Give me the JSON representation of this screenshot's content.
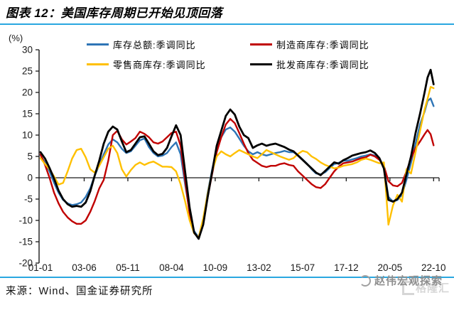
{
  "header": {
    "title": "图表 12：美国库存周期已开始见顶回落"
  },
  "colors": {
    "accent_rule": "#29A7E0",
    "axis": "#1a1a1a"
  },
  "chart_data": {
    "type": "line",
    "title": "美国库存周期已开始见顶回落",
    "y_unit_label": "(%)",
    "ylim": [
      -20,
      30
    ],
    "y_ticks": [
      30,
      25,
      20,
      15,
      10,
      5,
      0,
      -5,
      -10,
      -15,
      -20
    ],
    "x_tick_labels": [
      "01-01",
      "03-06",
      "05-11",
      "08-04",
      "10-09",
      "13-02",
      "15-07",
      "17-12",
      "20-05",
      "22-10"
    ],
    "x_tick_months": [
      0,
      29,
      58,
      87,
      116,
      145,
      174,
      203,
      232,
      261
    ],
    "grid": "off",
    "legend_position": "top",
    "x_months": [
      0,
      3,
      6,
      9,
      12,
      15,
      18,
      21,
      24,
      27,
      30,
      33,
      36,
      39,
      42,
      45,
      48,
      51,
      54,
      57,
      60,
      63,
      66,
      69,
      72,
      75,
      78,
      81,
      84,
      87,
      90,
      93,
      96,
      99,
      102,
      105,
      108,
      111,
      114,
      117,
      120,
      123,
      126,
      129,
      132,
      135,
      138,
      141,
      144,
      147,
      150,
      153,
      156,
      159,
      162,
      165,
      168,
      171,
      174,
      177,
      180,
      183,
      186,
      189,
      192,
      195,
      198,
      201,
      204,
      207,
      210,
      213,
      216,
      219,
      222,
      225,
      228,
      231,
      234,
      237,
      240,
      243,
      246,
      249,
      252,
      255,
      257,
      259,
      261
    ],
    "series": [
      {
        "name": "库存总额:季调同比",
        "color": "#2E75B6",
        "width": 2.4,
        "values": [
          5.3,
          3.5,
          1.5,
          -1.2,
          -3.5,
          -5.2,
          -6,
          -6.4,
          -6.2,
          -5.8,
          -4.5,
          -2.5,
          0.5,
          3,
          5.5,
          7.8,
          9,
          8.3,
          6.8,
          5.8,
          6.2,
          7.5,
          8.8,
          9.2,
          7.2,
          5.8,
          5,
          5.2,
          5.8,
          7.2,
          8.3,
          5.5,
          -1.5,
          -8,
          -12.5,
          -14,
          -10,
          -3.5,
          2,
          6.5,
          9.5,
          11.3,
          11.8,
          10.8,
          9.2,
          7.5,
          6.2,
          5.5,
          6,
          5.5,
          5.2,
          5.5,
          5.8,
          6,
          6.3,
          6,
          6,
          5.3,
          4.3,
          3.3,
          2,
          1,
          0.8,
          1.3,
          2.3,
          3.2,
          3.5,
          4,
          4,
          4.3,
          4.6,
          5,
          5.2,
          5.5,
          5.2,
          4.5,
          2.5,
          -4.5,
          -5.6,
          -5.2,
          -4,
          -0.5,
          3.5,
          8,
          12.5,
          15.5,
          18,
          18.6,
          16.8
        ]
      },
      {
        "name": "制造商库存:季调同比",
        "color": "#C00000",
        "width": 2.4,
        "values": [
          5.5,
          3,
          0,
          -3.5,
          -6,
          -8,
          -9.3,
          -10.2,
          -10.8,
          -10.8,
          -10,
          -8,
          -5.5,
          -2.5,
          -0.5,
          4,
          10,
          11,
          9,
          7.8,
          8.5,
          9.3,
          10.8,
          10.3,
          9.5,
          8.3,
          8,
          8.5,
          9.5,
          10.5,
          10.8,
          7.5,
          -0.5,
          -8.5,
          -13,
          -14,
          -10.5,
          -4.5,
          1,
          6,
          9.5,
          12.5,
          13.8,
          12.8,
          10.5,
          8,
          5.8,
          4.2,
          3.5,
          2.8,
          2.5,
          2.8,
          2.8,
          3.2,
          3.4,
          3,
          2.8,
          1.5,
          0.5,
          -0.5,
          -1.5,
          -2.2,
          -2.4,
          -1.5,
          0,
          1.5,
          2.6,
          3.4,
          3.6,
          3.8,
          4.2,
          4.6,
          4.8,
          5.4,
          5,
          4.2,
          2.8,
          -0.8,
          -1.8,
          -2,
          -1.2,
          1.5,
          4.5,
          7,
          8.5,
          10.2,
          11.2,
          10.2,
          7.6
        ]
      },
      {
        "name": "零售商库存:季调同比",
        "color": "#FFC000",
        "width": 2.4,
        "values": [
          4.6,
          3.2,
          2,
          0.3,
          -1.6,
          -1.2,
          1.5,
          4.5,
          6.5,
          6.8,
          4.8,
          2,
          1.2,
          2.8,
          4.8,
          6.8,
          7.5,
          5.8,
          2,
          0.3,
          1.8,
          3,
          3.6,
          3,
          3.5,
          3.8,
          3.2,
          2.6,
          2.6,
          2.5,
          1.5,
          -1.5,
          -5.5,
          -10,
          -13,
          -14,
          -9.5,
          -3.8,
          1.5,
          5,
          6.2,
          5.5,
          5,
          5.8,
          6.5,
          6,
          5.5,
          5,
          4.6,
          5.5,
          6.5,
          6,
          5.5,
          5,
          4.6,
          4.2,
          4.6,
          5.6,
          6.3,
          6,
          5,
          4.4,
          3.6,
          3,
          2.6,
          2.2,
          2.4,
          2.8,
          3,
          3.2,
          3.6,
          4.2,
          4.5,
          4.2,
          3.8,
          3.4,
          3.6,
          -11,
          -6.5,
          -4,
          -5.6,
          2,
          1,
          6,
          11,
          16,
          18.5,
          21.3,
          21
        ]
      },
      {
        "name": "批发商库存:季调同比",
        "color": "#000000",
        "width": 2.8,
        "values": [
          6,
          4.5,
          2.3,
          -0.2,
          -3,
          -5,
          -6.2,
          -6.8,
          -6.6,
          -6.8,
          -5.8,
          -3.2,
          0.5,
          4,
          8,
          10.8,
          12,
          11.3,
          8.5,
          6,
          6.5,
          8,
          9.5,
          9.7,
          8,
          6.2,
          5.3,
          5.6,
          7,
          9.7,
          12.3,
          10,
          1.5,
          -7,
          -12.8,
          -14.3,
          -11,
          -4.5,
          1.5,
          7.5,
          11,
          14.5,
          16,
          14.8,
          12,
          10,
          9.3,
          7,
          7.6,
          8,
          7.5,
          7.8,
          8,
          7.6,
          7.2,
          6.6,
          6.2,
          5.2,
          4.2,
          3.2,
          2.2,
          1.2,
          0.6,
          1.6,
          2.6,
          3.6,
          3.3,
          4.1,
          4.6,
          5.2,
          5.5,
          5.8,
          6,
          6.4,
          5.8,
          4.6,
          2.2,
          -5.2,
          -5.6,
          -5,
          -3.5,
          0.8,
          5,
          10.5,
          15,
          20,
          23.5,
          25.3,
          21.9
        ]
      }
    ]
  },
  "footer": {
    "source_label": "来源：Wind、国金证券研究所",
    "watermark": "赵伟宏观探索",
    "watermark_logo": "格隆汇"
  }
}
